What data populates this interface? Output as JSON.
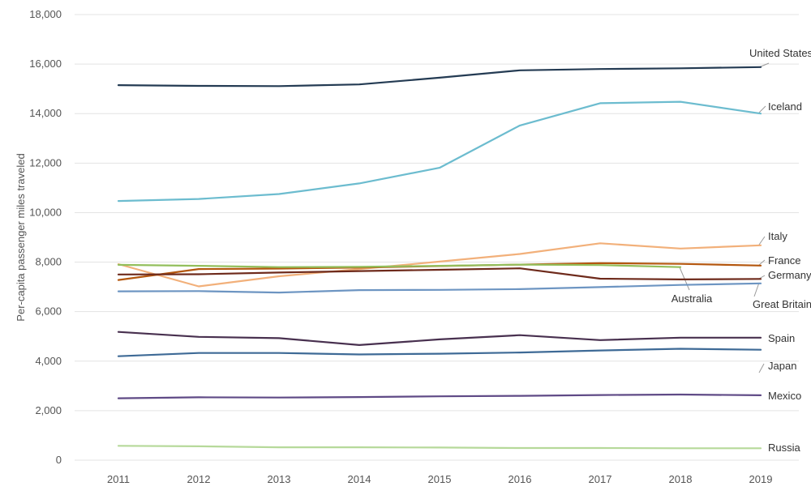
{
  "chart_data": {
    "type": "line",
    "title": "",
    "xlabel": "",
    "ylabel": "Per-capita passenger miles traveled",
    "x": [
      "2011",
      "2012",
      "2013",
      "2014",
      "2015",
      "2016",
      "2017",
      "2018",
      "2019"
    ],
    "ylim": [
      0,
      18000
    ],
    "yticks": [
      "0",
      "2,000",
      "4,000",
      "6,000",
      "8,000",
      "10,000",
      "12,000",
      "14,000",
      "16,000",
      "18,000"
    ],
    "grid": "horizontal",
    "legend": "direct labels at right end of lines",
    "series": [
      {
        "name": "United States",
        "color": "#243b53",
        "values": [
          15150,
          15120,
          15110,
          15180,
          15450,
          15750,
          15800,
          15830,
          15880
        ]
      },
      {
        "name": "Iceland",
        "color": "#6cbccf",
        "values": [
          10470,
          10550,
          10750,
          11180,
          11810,
          13520,
          14420,
          14480,
          14000
        ]
      },
      {
        "name": "Italy",
        "color": "#f2b07a",
        "values": [
          7920,
          7020,
          7430,
          7720,
          8020,
          8330,
          8760,
          8550,
          8680
        ]
      },
      {
        "name": "France",
        "color": "#b4570f",
        "values": [
          7280,
          7720,
          7740,
          7780,
          7840,
          7900,
          7960,
          7930,
          7860
        ]
      },
      {
        "name": "Australia",
        "color": "#93bf5c",
        "values": [
          7890,
          7850,
          7800,
          7810,
          7850,
          7900,
          7880,
          7800,
          null
        ]
      },
      {
        "name": "Germany",
        "color": "#6e2a1b",
        "values": [
          7500,
          7510,
          7580,
          7640,
          7690,
          7750,
          7330,
          7300,
          7320
        ]
      },
      {
        "name": "Great Britain",
        "color": "#6d95c2",
        "values": [
          6820,
          6830,
          6770,
          6870,
          6880,
          6910,
          6990,
          7080,
          7140
        ]
      },
      {
        "name": "Spain",
        "color": "#48304f",
        "values": [
          5180,
          4980,
          4930,
          4650,
          4880,
          5050,
          4850,
          4950,
          4950
        ]
      },
      {
        "name": "Japan",
        "color": "#3e6a96",
        "values": [
          4200,
          4330,
          4330,
          4270,
          4300,
          4350,
          4430,
          4500,
          4460
        ]
      },
      {
        "name": "Mexico",
        "color": "#5f4a86",
        "values": [
          2500,
          2540,
          2530,
          2550,
          2580,
          2600,
          2630,
          2650,
          2620
        ]
      },
      {
        "name": "Russia",
        "color": "#b6d99a",
        "values": [
          580,
          560,
          520,
          520,
          510,
          490,
          490,
          480,
          480
        ]
      }
    ]
  }
}
